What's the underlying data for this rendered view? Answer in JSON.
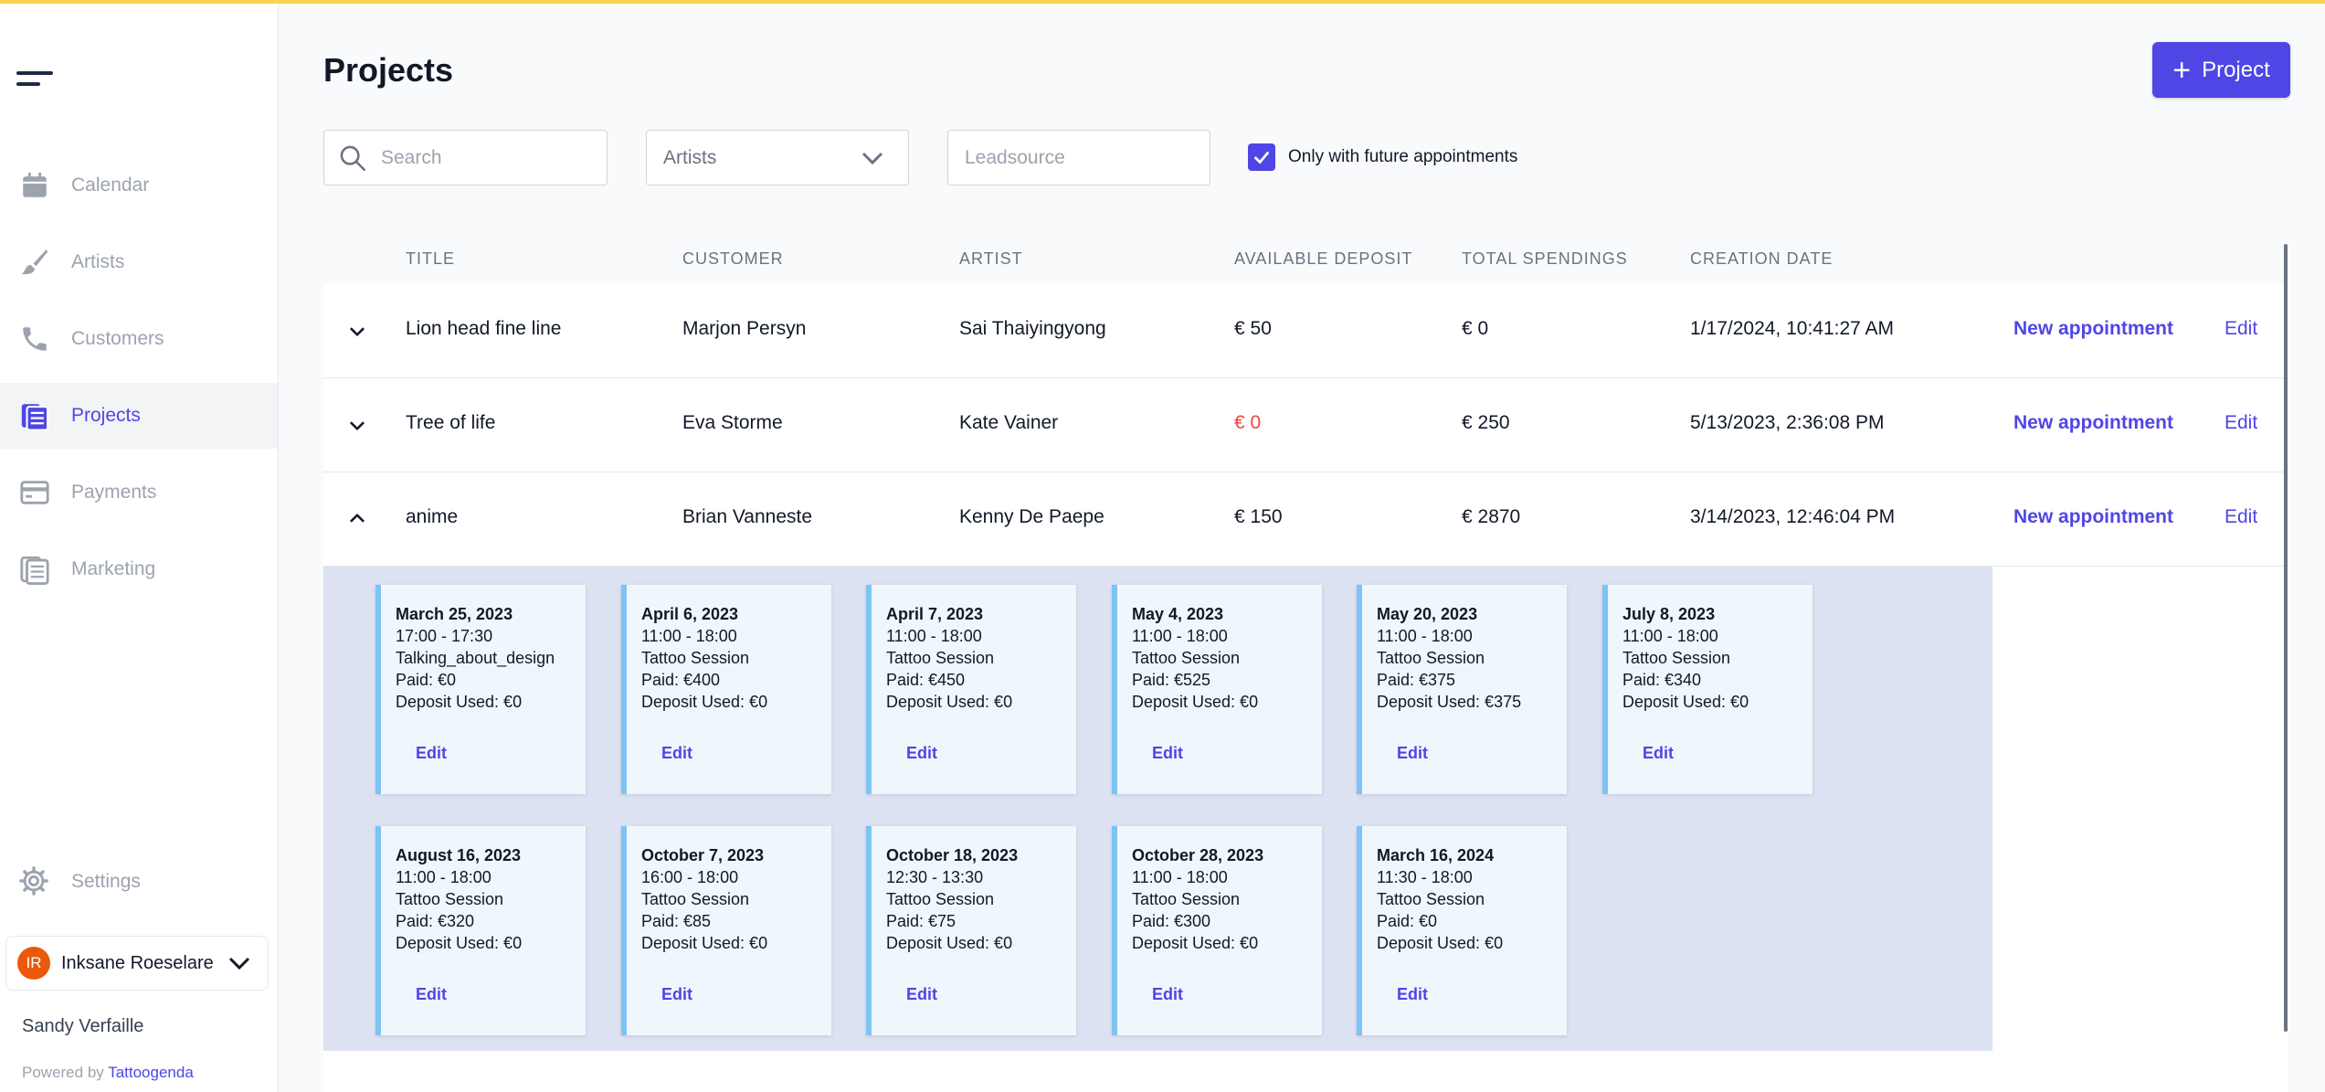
{
  "sidebar": {
    "items": [
      {
        "label": "Calendar",
        "icon": "calendar-icon"
      },
      {
        "label": "Artists",
        "icon": "brush-icon"
      },
      {
        "label": "Customers",
        "icon": "phone-icon"
      },
      {
        "label": "Projects",
        "icon": "projects-icon",
        "active": true
      },
      {
        "label": "Payments",
        "icon": "credit-card-icon"
      },
      {
        "label": "Marketing",
        "icon": "marketing-icon"
      }
    ],
    "settings_label": "Settings",
    "account": {
      "initials": "IR",
      "name": "Inksane Roeselare"
    },
    "user_name": "Sandy Verfaille",
    "powered_by": "Powered by",
    "brand": "Tattoogenda"
  },
  "header": {
    "title": "Projects",
    "add_button_label": "Project"
  },
  "filters": {
    "search_placeholder": "Search",
    "artists_label": "Artists",
    "leadsource_placeholder": "Leadsource",
    "future_label": "Only with future appointments",
    "future_checked": true
  },
  "table": {
    "columns": [
      "TITLE",
      "CUSTOMER",
      "ARTIST",
      "AVAILABLE DEPOSIT",
      "TOTAL SPENDINGS",
      "CREATION DATE"
    ],
    "new_appointment_label": "New appointment",
    "edit_label": "Edit",
    "rows": [
      {
        "title": "Lion head fine line",
        "customer": "Marjon Persyn",
        "artist": "Sai Thaiyingyong",
        "deposit": "€ 50",
        "spendings": "€ 0",
        "created": "1/17/2024, 10:41:27 AM"
      },
      {
        "title": "Tree of life",
        "customer": "Eva Storme",
        "artist": "Kate Vainer",
        "deposit": "€ 0",
        "spendings": "€ 250",
        "created": "5/13/2023, 2:36:08 PM"
      },
      {
        "title": "anime",
        "customer": "Brian Vanneste",
        "artist": "Kenny De Paepe",
        "deposit": "€ 150",
        "spendings": "€ 2870",
        "created": "3/14/2023, 12:46:04 PM"
      }
    ]
  },
  "appointments": {
    "edit_label": "Edit",
    "items": [
      {
        "date": "March 25, 2023",
        "time": "17:00 - 17:30",
        "type": "Talking_about_design",
        "paid": "Paid: €0",
        "deposit": "Deposit Used: €0"
      },
      {
        "date": "April 6, 2023",
        "time": "11:00 - 18:00",
        "type": "Tattoo Session",
        "paid": "Paid: €400",
        "deposit": "Deposit Used: €0"
      },
      {
        "date": "April 7, 2023",
        "time": "11:00 - 18:00",
        "type": "Tattoo Session",
        "paid": "Paid: €450",
        "deposit": "Deposit Used: €0"
      },
      {
        "date": "May 4, 2023",
        "time": "11:00 - 18:00",
        "type": "Tattoo Session",
        "paid": "Paid: €525",
        "deposit": "Deposit Used: €0"
      },
      {
        "date": "May 20, 2023",
        "time": "11:00 - 18:00",
        "type": "Tattoo Session",
        "paid": "Paid: €375",
        "deposit": "Deposit Used: €375"
      },
      {
        "date": "July 8, 2023",
        "time": "11:00 - 18:00",
        "type": "Tattoo Session",
        "paid": "Paid: €340",
        "deposit": "Deposit Used: €0"
      },
      {
        "date": "August 16, 2023",
        "time": "11:00 - 18:00",
        "type": "Tattoo Session",
        "paid": "Paid: €320",
        "deposit": "Deposit Used: €0"
      },
      {
        "date": "October 7, 2023",
        "time": "16:00 - 18:00",
        "type": "Tattoo Session",
        "paid": "Paid: €85",
        "deposit": "Deposit Used: €0"
      },
      {
        "date": "October 18, 2023",
        "time": "12:30 - 13:30",
        "type": "Tattoo Session",
        "paid": "Paid: €75",
        "deposit": "Deposit Used: €0"
      },
      {
        "date": "October 28, 2023",
        "time": "11:00 - 18:00",
        "type": "Tattoo Session",
        "paid": "Paid: €300",
        "deposit": "Deposit Used: €0"
      },
      {
        "date": "March 16, 2024",
        "time": "11:30 - 18:00",
        "type": "Tattoo Session",
        "paid": "Paid: €0",
        "deposit": "Deposit Used: €0"
      }
    ]
  },
  "colors": {
    "accent": "#4f46e5",
    "negative": "#ef4444",
    "card_border": "#7dc3f3",
    "avatar": "#ea580c"
  }
}
